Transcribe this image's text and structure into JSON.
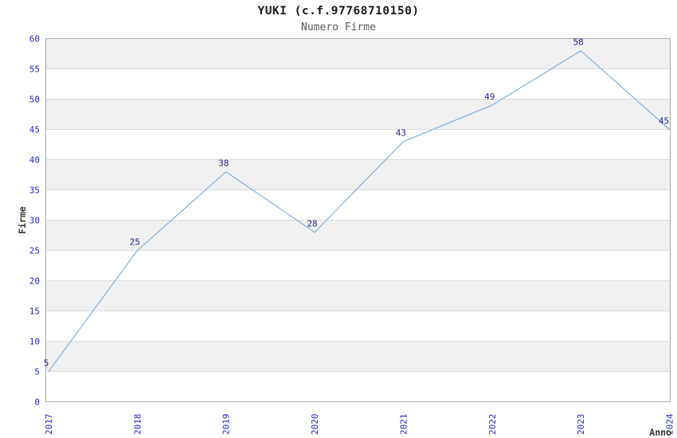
{
  "chart_data": {
    "type": "line",
    "title": "YUKI (c.f.97768710150)",
    "subtitle": "Numero Firme",
    "xlabel": "Anno",
    "ylabel": "Firme",
    "x": [
      "2017",
      "2018",
      "2019",
      "2020",
      "2021",
      "2022",
      "2023",
      "2024"
    ],
    "series": [
      {
        "name": "Numero Firme",
        "values": [
          5,
          25,
          38,
          28,
          43,
          49,
          58,
          45
        ]
      }
    ],
    "ylim": [
      0,
      60
    ],
    "yticks": [
      0,
      5,
      10,
      15,
      20,
      25,
      30,
      35,
      40,
      45,
      50,
      55,
      60
    ],
    "grid": "horizontal gridlines with alternating shaded bands every 5 units",
    "legend_position": "none",
    "point_labels_shown": true,
    "colors": {
      "line": "#85b2de",
      "tick_label": "#2626cf",
      "point_label": "#26268c",
      "band": "#f0f0f0",
      "gridline": "#dcdcdc",
      "border": "#adadad",
      "title": "#1a1a1a",
      "subtitle": "#595959",
      "axis_title": "#333333",
      "background": "#ffffff"
    }
  }
}
